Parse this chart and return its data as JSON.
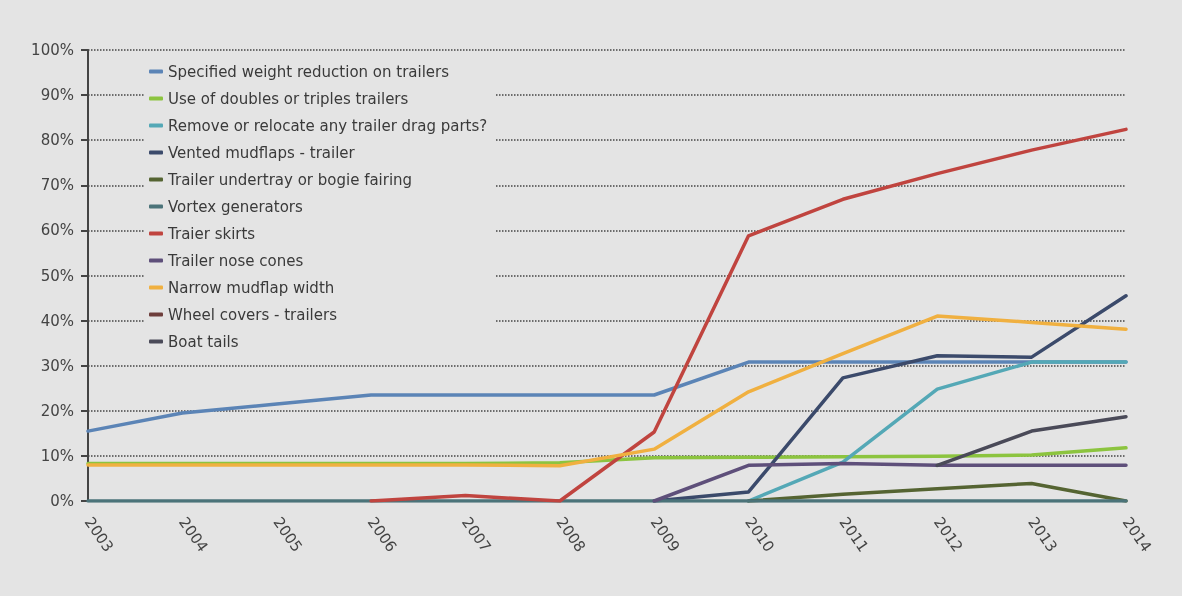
{
  "chart_data": {
    "type": "line",
    "categories": [
      "2003",
      "2004",
      "2005",
      "2006",
      "2007",
      "2008",
      "2009",
      "2010",
      "2011",
      "2012",
      "2013",
      "2014"
    ],
    "series": [
      {
        "name": "Specified weight reduction on trailers",
        "color": "#5b84b6",
        "values": [
          15.5,
          19.5,
          21.5,
          23.5,
          23.5,
          23.5,
          23.5,
          30.8,
          30.8,
          30.8,
          30.8,
          30.8
        ]
      },
      {
        "name": "Use of doubles or triples trailers",
        "color": "#8cc43f",
        "values": [
          8.3,
          8.3,
          8.3,
          8.3,
          8.3,
          8.5,
          9.6,
          9.7,
          9.8,
          9.9,
          10.2,
          11.8
        ]
      },
      {
        "name": "Remove or relocate any trailer drag parts?",
        "color": "#54a8b6",
        "values": [
          null,
          null,
          null,
          null,
          null,
          null,
          null,
          0,
          8.6,
          24.8,
          30.8,
          30.8
        ]
      },
      {
        "name": "Vented mudflaps - trailer",
        "color": "#3b4a6b",
        "values": [
          null,
          null,
          null,
          null,
          null,
          null,
          0,
          2,
          27.3,
          32.2,
          31.9,
          45.5
        ]
      },
      {
        "name": "Trailer undertray or bogie fairing",
        "color": "#556432",
        "values": [
          null,
          null,
          null,
          null,
          null,
          null,
          null,
          0,
          1.5,
          2.7,
          3.9,
          0
        ]
      },
      {
        "name": "Vortex generators",
        "color": "#4b7379",
        "values": [
          0,
          0,
          0,
          0,
          0,
          0,
          0,
          0,
          0,
          0,
          0,
          0
        ]
      },
      {
        "name": "Traier skirts",
        "color": "#c0443f",
        "values": [
          null,
          null,
          null,
          0,
          1.2,
          0,
          15.3,
          58.8,
          66.9,
          72.6,
          77.8,
          82.4
        ]
      },
      {
        "name": "Trailer nose cones",
        "color": "#5e4f7a",
        "values": [
          null,
          null,
          null,
          null,
          null,
          null,
          0,
          7.9,
          8.3,
          7.9,
          7.9,
          7.9
        ]
      },
      {
        "name": "Narrow mudflap width",
        "color": "#f0b040",
        "values": [
          8,
          8,
          8,
          8,
          8,
          7.8,
          11.5,
          24.2,
          32.7,
          41,
          39.6,
          38.1
        ]
      },
      {
        "name": "Wheel covers - trailers",
        "color": "#6e3e3c",
        "values": [
          null,
          null,
          null,
          null,
          null,
          null,
          null,
          null,
          null,
          null,
          null,
          null
        ]
      },
      {
        "name": "Boat tails",
        "color": "#4a4a58",
        "values": [
          null,
          null,
          null,
          null,
          null,
          null,
          null,
          null,
          null,
          7.9,
          15.5,
          18.7
        ]
      }
    ],
    "ylim": [
      0,
      100
    ],
    "yticks": [
      {
        "value": 0,
        "label": "0%"
      },
      {
        "value": 10,
        "label": "10%"
      },
      {
        "value": 20,
        "label": "20%"
      },
      {
        "value": 30,
        "label": "30%"
      },
      {
        "value": 40,
        "label": "40%"
      },
      {
        "value": 50,
        "label": "50%"
      },
      {
        "value": 60,
        "label": "60%"
      },
      {
        "value": 70,
        "label": "70%"
      },
      {
        "value": 80,
        "label": "80%"
      },
      {
        "value": 90,
        "label": "90%"
      },
      {
        "value": 100,
        "label": "100%"
      }
    ],
    "grid": "y",
    "legend": "top left",
    "marker": "none",
    "line_style": "solid"
  }
}
